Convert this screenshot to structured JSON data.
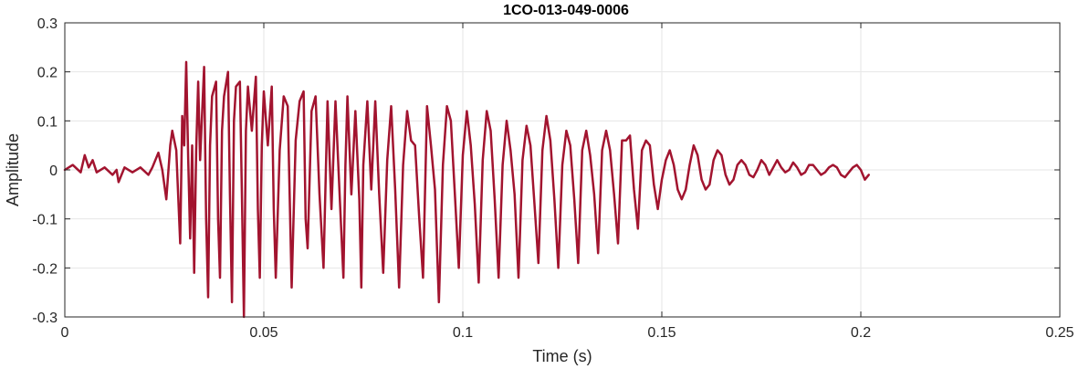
{
  "chart_data": {
    "type": "line",
    "title": "1CO-013-049-0006",
    "xlabel": "Time (s)",
    "ylabel": "Amplitude",
    "xlim": [
      0,
      0.25
    ],
    "ylim": [
      -0.3,
      0.3
    ],
    "grid": true,
    "x_ticks": [
      0,
      0.05,
      0.1,
      0.15,
      0.2,
      0.25
    ],
    "x_tick_labels": [
      "0",
      "0.05",
      "0.1",
      "0.15",
      "0.2",
      "0.25"
    ],
    "y_ticks": [
      0.3,
      0.2,
      0.1,
      0,
      -0.1,
      -0.2,
      -0.3
    ],
    "y_tick_labels": [
      "0.3",
      "0.2",
      "0.1",
      "0",
      "-0.1",
      "-0.2",
      "-0.3"
    ],
    "colors": {
      "line": "#A2142F",
      "grid": "#e6e6e6",
      "axes": "#262626"
    },
    "series": [
      {
        "values": [
          [
            0,
            0
          ],
          [
            0.002,
            0.01
          ],
          [
            0.004,
            -0.005
          ],
          [
            0.005,
            0.03
          ],
          [
            0.006,
            0.005
          ],
          [
            0.007,
            0.02
          ],
          [
            0.008,
            -0.005
          ],
          [
            0.01,
            0.005
          ],
          [
            0.012,
            -0.01
          ],
          [
            0.013,
            0
          ],
          [
            0.0135,
            -0.025
          ],
          [
            0.015,
            0.005
          ],
          [
            0.017,
            -0.005
          ],
          [
            0.019,
            0.005
          ],
          [
            0.021,
            -0.01
          ],
          [
            0.022,
            0.005
          ],
          [
            0.0235,
            0.035
          ],
          [
            0.0245,
            0
          ],
          [
            0.0255,
            -0.06
          ],
          [
            0.0265,
            0.05
          ],
          [
            0.027,
            0.08
          ],
          [
            0.028,
            0.04
          ],
          [
            0.029,
            -0.15
          ],
          [
            0.0295,
            0.11
          ],
          [
            0.03,
            0.05
          ],
          [
            0.0305,
            0.22
          ],
          [
            0.031,
            0.02
          ],
          [
            0.0315,
            -0.14
          ],
          [
            0.032,
            0.05
          ],
          [
            0.0325,
            -0.21
          ],
          [
            0.033,
            0.04
          ],
          [
            0.0335,
            0.18
          ],
          [
            0.034,
            0.02
          ],
          [
            0.035,
            0.21
          ],
          [
            0.0355,
            -0.1
          ],
          [
            0.036,
            -0.26
          ],
          [
            0.0365,
            0.05
          ],
          [
            0.037,
            0.15
          ],
          [
            0.038,
            0.18
          ],
          [
            0.0385,
            -0.1
          ],
          [
            0.039,
            -0.22
          ],
          [
            0.0395,
            0.08
          ],
          [
            0.04,
            0.15
          ],
          [
            0.041,
            0.2
          ],
          [
            0.0415,
            -0.05
          ],
          [
            0.042,
            -0.27
          ],
          [
            0.0425,
            0.1
          ],
          [
            0.043,
            0.17
          ],
          [
            0.044,
            0.18
          ],
          [
            0.0445,
            -0.05
          ],
          [
            0.045,
            -0.3
          ],
          [
            0.0455,
            0.08
          ],
          [
            0.046,
            0.17
          ],
          [
            0.047,
            0.08
          ],
          [
            0.048,
            0.19
          ],
          [
            0.0485,
            -0.08
          ],
          [
            0.049,
            -0.22
          ],
          [
            0.0495,
            0.05
          ],
          [
            0.05,
            0.16
          ],
          [
            0.051,
            0.05
          ],
          [
            0.052,
            0.17
          ],
          [
            0.0525,
            -0.08
          ],
          [
            0.053,
            -0.22
          ],
          [
            0.054,
            0.04
          ],
          [
            0.055,
            0.15
          ],
          [
            0.056,
            0.13
          ],
          [
            0.0565,
            -0.05
          ],
          [
            0.057,
            -0.24
          ],
          [
            0.058,
            0.06
          ],
          [
            0.059,
            0.14
          ],
          [
            0.06,
            0.16
          ],
          [
            0.0605,
            -0.1
          ],
          [
            0.061,
            -0.16
          ],
          [
            0.062,
            0.12
          ],
          [
            0.063,
            0.15
          ],
          [
            0.064,
            -0.05
          ],
          [
            0.065,
            -0.2
          ],
          [
            0.066,
            0.14
          ],
          [
            0.067,
            -0.08
          ],
          [
            0.068,
            0.14
          ],
          [
            0.069,
            -0.04
          ],
          [
            0.07,
            -0.22
          ],
          [
            0.0705,
            0.01
          ],
          [
            0.071,
            0.15
          ],
          [
            0.072,
            -0.05
          ],
          [
            0.073,
            0.12
          ],
          [
            0.074,
            -0.06
          ],
          [
            0.0745,
            -0.24
          ],
          [
            0.075,
            0.01
          ],
          [
            0.076,
            0.14
          ],
          [
            0.077,
            -0.04
          ],
          [
            0.078,
            0.14
          ],
          [
            0.079,
            -0.05
          ],
          [
            0.08,
            -0.21
          ],
          [
            0.081,
            0.02
          ],
          [
            0.082,
            0.13
          ],
          [
            0.083,
            -0.04
          ],
          [
            0.084,
            -0.24
          ],
          [
            0.085,
            0.01
          ],
          [
            0.086,
            0.12
          ],
          [
            0.087,
            0.06
          ],
          [
            0.088,
            0.05
          ],
          [
            0.089,
            -0.09
          ],
          [
            0.09,
            -0.22
          ],
          [
            0.091,
            0.13
          ],
          [
            0.092,
            0.05
          ],
          [
            0.093,
            -0.04
          ],
          [
            0.094,
            -0.27
          ],
          [
            0.095,
            0.01
          ],
          [
            0.096,
            0.13
          ],
          [
            0.097,
            0.1
          ],
          [
            0.098,
            -0.05
          ],
          [
            0.099,
            -0.2
          ],
          [
            0.1,
            0.03
          ],
          [
            0.101,
            0.12
          ],
          [
            0.102,
            0.05
          ],
          [
            0.103,
            -0.07
          ],
          [
            0.104,
            -0.23
          ],
          [
            0.105,
            0.02
          ],
          [
            0.106,
            0.12
          ],
          [
            0.107,
            0.08
          ],
          [
            0.108,
            -0.06
          ],
          [
            0.109,
            -0.22
          ],
          [
            0.11,
            0.01
          ],
          [
            0.111,
            0.1
          ],
          [
            0.112,
            0.04
          ],
          [
            0.113,
            -0.05
          ],
          [
            0.114,
            -0.22
          ],
          [
            0.115,
            0.02
          ],
          [
            0.116,
            0.09
          ],
          [
            0.117,
            0.05
          ],
          [
            0.118,
            -0.07
          ],
          [
            0.119,
            -0.19
          ],
          [
            0.12,
            0.04
          ],
          [
            0.121,
            0.11
          ],
          [
            0.122,
            0.06
          ],
          [
            0.123,
            -0.06
          ],
          [
            0.124,
            -0.2
          ],
          [
            0.125,
            0.01
          ],
          [
            0.126,
            0.08
          ],
          [
            0.127,
            0.05
          ],
          [
            0.128,
            -0.06
          ],
          [
            0.129,
            -0.19
          ],
          [
            0.13,
            0.04
          ],
          [
            0.131,
            0.08
          ],
          [
            0.132,
            0.03
          ],
          [
            0.133,
            -0.05
          ],
          [
            0.134,
            -0.17
          ],
          [
            0.135,
            0.04
          ],
          [
            0.136,
            0.08
          ],
          [
            0.137,
            0.04
          ],
          [
            0.138,
            -0.05
          ],
          [
            0.139,
            -0.15
          ],
          [
            0.14,
            0.06
          ],
          [
            0.141,
            0.06
          ],
          [
            0.142,
            0.07
          ],
          [
            0.143,
            -0.04
          ],
          [
            0.144,
            -0.12
          ],
          [
            0.145,
            0.04
          ],
          [
            0.146,
            0.06
          ],
          [
            0.147,
            0.05
          ],
          [
            0.148,
            -0.03
          ],
          [
            0.149,
            -0.08
          ],
          [
            0.15,
            -0.02
          ],
          [
            0.151,
            0.02
          ],
          [
            0.152,
            0.04
          ],
          [
            0.153,
            0.01
          ],
          [
            0.154,
            -0.04
          ],
          [
            0.155,
            -0.06
          ],
          [
            0.156,
            -0.04
          ],
          [
            0.157,
            0.01
          ],
          [
            0.158,
            0.05
          ],
          [
            0.159,
            0.03
          ],
          [
            0.16,
            -0.02
          ],
          [
            0.161,
            -0.04
          ],
          [
            0.162,
            -0.03
          ],
          [
            0.163,
            0.02
          ],
          [
            0.164,
            0.04
          ],
          [
            0.165,
            0.03
          ],
          [
            0.166,
            -0.01
          ],
          [
            0.167,
            -0.03
          ],
          [
            0.168,
            -0.02
          ],
          [
            0.169,
            0.01
          ],
          [
            0.17,
            0.02
          ],
          [
            0.171,
            0.01
          ],
          [
            0.172,
            -0.01
          ],
          [
            0.173,
            -0.015
          ],
          [
            0.174,
            0
          ],
          [
            0.175,
            0.02
          ],
          [
            0.176,
            0.01
          ],
          [
            0.177,
            -0.01
          ],
          [
            0.178,
            0.005
          ],
          [
            0.179,
            0.02
          ],
          [
            0.18,
            0.005
          ],
          [
            0.181,
            -0.005
          ],
          [
            0.182,
            0
          ],
          [
            0.183,
            0.015
          ],
          [
            0.184,
            0.005
          ],
          [
            0.185,
            -0.01
          ],
          [
            0.186,
            -0.005
          ],
          [
            0.187,
            0.01
          ],
          [
            0.188,
            0.01
          ],
          [
            0.189,
            0
          ],
          [
            0.19,
            -0.01
          ],
          [
            0.191,
            -0.005
          ],
          [
            0.192,
            0.005
          ],
          [
            0.193,
            0.01
          ],
          [
            0.194,
            0.005
          ],
          [
            0.195,
            -0.01
          ],
          [
            0.196,
            -0.015
          ],
          [
            0.197,
            -0.005
          ],
          [
            0.198,
            0.005
          ],
          [
            0.199,
            0.01
          ],
          [
            0.2,
            0
          ],
          [
            0.201,
            -0.02
          ],
          [
            0.202,
            -0.01
          ]
        ]
      }
    ]
  }
}
